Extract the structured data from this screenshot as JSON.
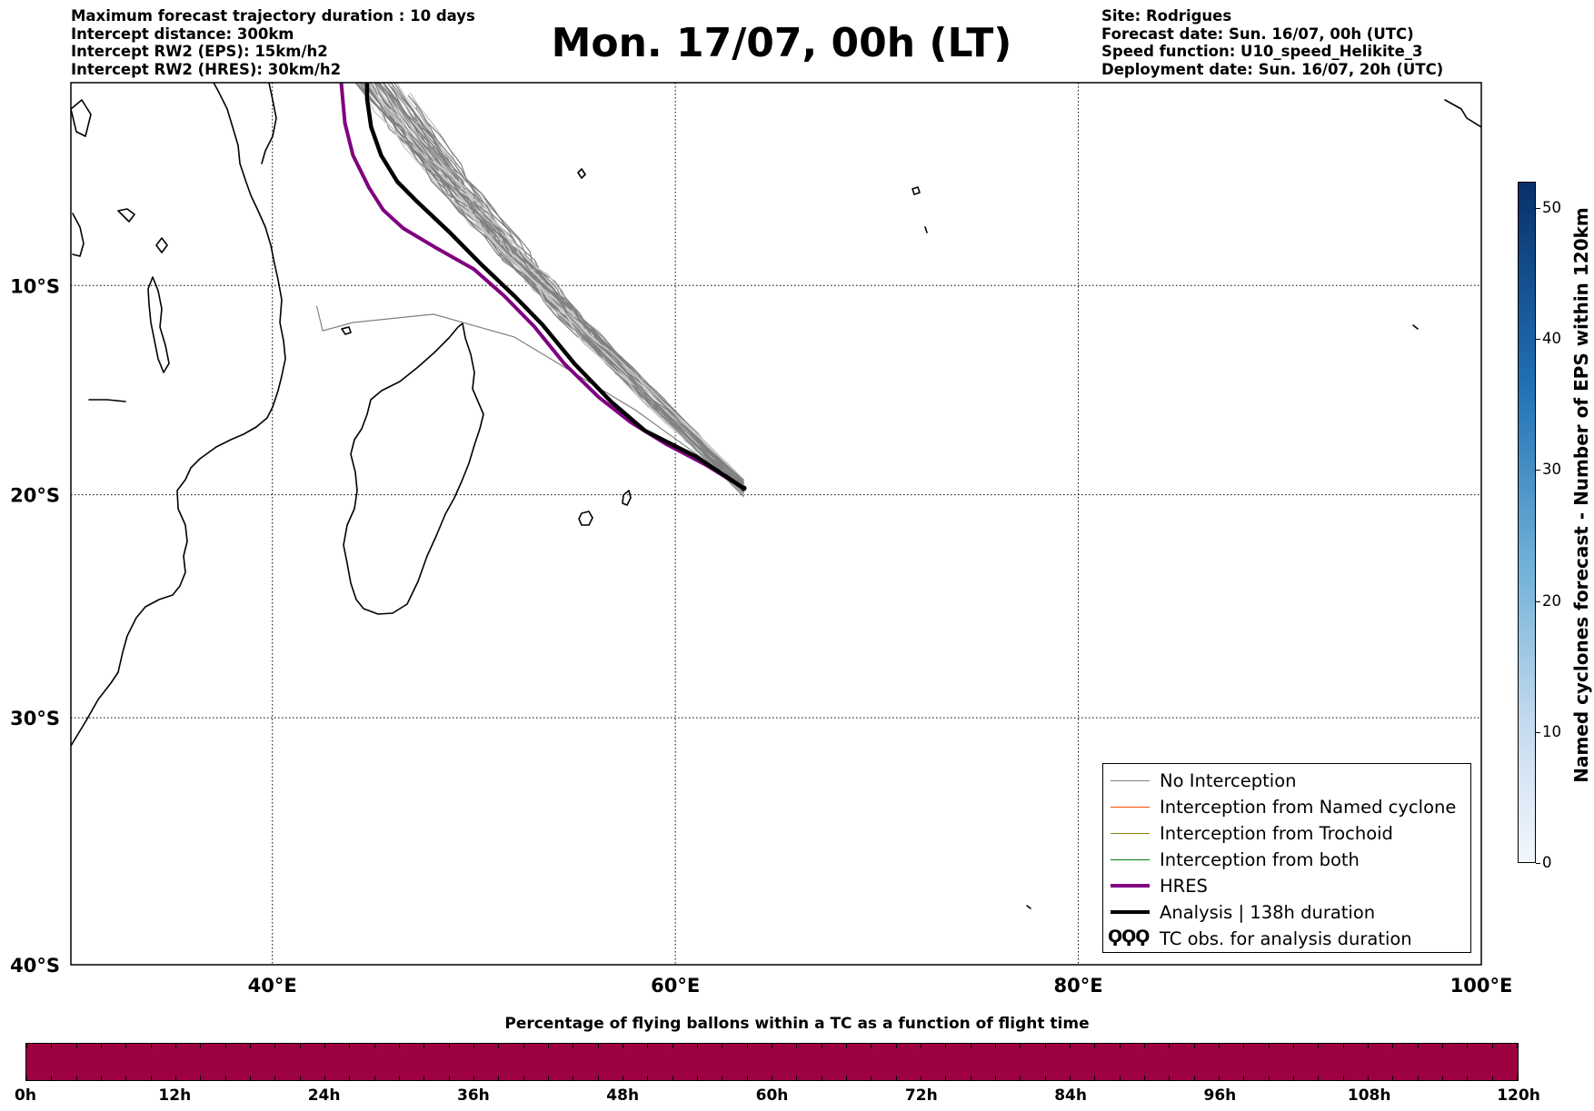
{
  "header": {
    "left_lines": [
      "Maximum forecast trajectory duration : 10 days",
      "Intercept distance: 300km",
      "Intercept RW2 (EPS):  15km/h2",
      "Intercept RW2 (HRES): 30km/h2"
    ],
    "right_lines": [
      "Site: Rodrigues",
      "Forecast date: Sun. 16/07, 00h (UTC)",
      "Speed function: U10_speed_Helikite_3",
      "Deployment date: Sun. 16/07, 20h (UTC)"
    ],
    "title": "Mon. 17/07, 00h (LT)"
  },
  "map": {
    "lon_range": [
      30,
      100
    ],
    "lat_range": [
      -40,
      0
    ],
    "lat_labels": [
      "10°S",
      "20°S",
      "30°S",
      "40°S"
    ],
    "lon_labels": [
      "40°E",
      "60°E",
      "80°E",
      "100°E"
    ],
    "grid": true,
    "release_point": {
      "lon": 63.4,
      "lat": -19.7,
      "name": "Rodrigues"
    },
    "hres_track": [
      [
        63.4,
        -19.7
      ],
      [
        61.5,
        -18.6
      ],
      [
        59.5,
        -17.6
      ],
      [
        57.8,
        -16.6
      ],
      [
        56.2,
        -15.4
      ],
      [
        54.5,
        -13.8
      ],
      [
        53.0,
        -12.0
      ],
      [
        51.5,
        -10.5
      ],
      [
        50.0,
        -9.2
      ],
      [
        48.2,
        -8.2
      ],
      [
        46.5,
        -7.2
      ],
      [
        45.5,
        -6.3
      ],
      [
        44.8,
        -5.2
      ],
      [
        44.0,
        -3.6
      ],
      [
        43.6,
        -2.0
      ],
      [
        43.4,
        0.2
      ]
    ],
    "analysis_track": [
      [
        63.4,
        -19.7
      ],
      [
        61.0,
        -18.2
      ],
      [
        58.5,
        -17.0
      ],
      [
        56.8,
        -15.6
      ],
      [
        55.0,
        -13.8
      ],
      [
        53.4,
        -11.9
      ],
      [
        52.0,
        -10.5
      ],
      [
        50.4,
        -9.0
      ],
      [
        48.8,
        -7.4
      ],
      [
        47.2,
        -5.9
      ],
      [
        46.2,
        -4.9
      ],
      [
        45.4,
        -3.6
      ],
      [
        44.9,
        -2.2
      ],
      [
        44.7,
        -0.8
      ],
      [
        44.7,
        0.2
      ]
    ],
    "analysis_label": "Analysis | 138h duration"
  },
  "legend": {
    "placement": "lower-right",
    "items": [
      {
        "label": "No Interception",
        "color": "#808080"
      },
      {
        "label": "Interception from Named cyclone",
        "color": "#ff4500"
      },
      {
        "label": "Interception from Trochoid",
        "color": "#808000"
      },
      {
        "label": "Interception from both",
        "color": "#008000"
      },
      {
        "label": "HRES",
        "color": "#800080"
      },
      {
        "label": "Analysis | 138h duration",
        "color": "#000000"
      },
      {
        "label": "TC obs. for analysis duration",
        "glyph": "ϘϘϘ"
      }
    ]
  },
  "colorbar_right": {
    "label": "Named cyclones forecast - Number of EPS within 120km",
    "min": 0,
    "max": 52,
    "ticks": [
      "0",
      "10",
      "20",
      "30",
      "40",
      "50"
    ],
    "tick_values": [
      0,
      10,
      20,
      30,
      40,
      50
    ],
    "colors": [
      "#f2f7fd",
      "#08306b"
    ]
  },
  "colorbar_bottom": {
    "title": "Percentage of flying ballons within a TC as a function of flight time",
    "ticks": [
      "0h",
      "12h",
      "24h",
      "36h",
      "48h",
      "60h",
      "72h",
      "84h",
      "96h",
      "108h",
      "120h"
    ],
    "fill_color": "#9e0142",
    "filled_fraction": 1.0
  }
}
